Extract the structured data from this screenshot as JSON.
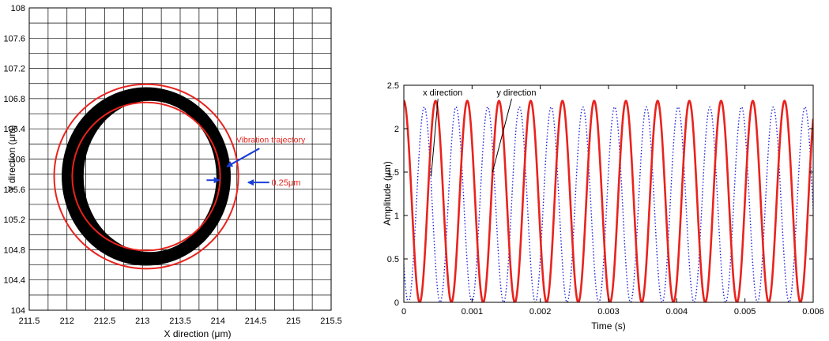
{
  "chart_data": [
    {
      "type": "scatter",
      "xlabel": "X direction (μm)",
      "ylabel": "Y direction (μm)",
      "xlim": [
        211.5,
        215.5
      ],
      "ylim": [
        104,
        108
      ],
      "xticks": [
        211.5,
        212,
        212.5,
        213,
        213.5,
        214,
        214.5,
        215,
        215.5
      ],
      "xtick_labels": [
        "211.5",
        "212",
        "212.5",
        "213",
        "213.5",
        "214",
        "214.5",
        "215",
        "215.5"
      ],
      "yticks": [
        104,
        104.4,
        104.8,
        105.2,
        105.6,
        106,
        106.4,
        106.8,
        107.2,
        107.6,
        108
      ],
      "ytick_labels": [
        "104",
        "104.4",
        "104.8",
        "105.2",
        "105.6",
        "106",
        "106.4",
        "106.8",
        "107.2",
        "107.6",
        "108"
      ],
      "grid": true,
      "band": {
        "outer": {
          "cx": 213.05,
          "cy": 105.77,
          "rx": 1.12,
          "ry": 1.18
        },
        "inner": {
          "cx": 213.1,
          "cy": 105.77,
          "rx": 0.88,
          "ry": 1.0
        },
        "color": "#000000"
      },
      "circles": [
        {
          "cx": 213.05,
          "cy": 105.77,
          "r": 1.22,
          "color": "#e8231d"
        },
        {
          "cx": 213.05,
          "cy": 105.77,
          "r": 0.98,
          "color": "#e8231d"
        }
      ],
      "annotations": [
        {
          "text": "Vibration trajectory",
          "x": 214.7,
          "y": 106.22,
          "color": "#e8231d",
          "arrow_from": [
            214.55,
            106.14
          ],
          "arrow_to": [
            214.12,
            105.9
          ]
        },
        {
          "text": "0.25μm",
          "x": 214.72,
          "y": 105.69,
          "color": "#e8231d",
          "arrow_left_from": [
            213.85,
            105.72
          ],
          "arrow_left_to": [
            214.02,
            105.72
          ],
          "arrow_right_from": [
            214.68,
            105.69
          ],
          "arrow_right_to": [
            214.4,
            105.69
          ]
        }
      ]
    },
    {
      "type": "line",
      "xlabel": "Time (s)",
      "ylabel": "Amplitude (μm)",
      "xlim": [
        0,
        0.006
      ],
      "ylim": [
        0,
        2.5
      ],
      "xticks": [
        0,
        0.001,
        0.002,
        0.003,
        0.004,
        0.005,
        0.006
      ],
      "xtick_labels": [
        "0",
        "0.001",
        "0.002",
        "0.003",
        "0.004",
        "0.005",
        "0.006"
      ],
      "yticks": [
        0,
        0.5,
        1,
        1.5,
        2,
        2.5
      ],
      "ytick_labels": [
        "0",
        "0.5",
        "1",
        "1.5",
        "2",
        "2.5"
      ],
      "grid": false,
      "series": [
        {
          "name": "x direction",
          "color": "#2222dd",
          "style": "dotted",
          "amplitude": 1.125,
          "offset": 1.125,
          "period": 0.000465,
          "phase_t0": 0.0003
        },
        {
          "name": "y direction",
          "color": "#e8231d",
          "style": "solid",
          "amplitude": 1.16,
          "offset": 1.16,
          "period": 0.000465,
          "phase_t0": 0.0
        }
      ],
      "annotations": [
        {
          "text": "x direction",
          "x": 0.00057,
          "y": 2.38,
          "arrow_to": [
            0.0004,
            1.45
          ]
        },
        {
          "text": "y direction",
          "x": 0.00165,
          "y": 2.38,
          "arrow_to": [
            0.0013,
            1.5
          ]
        }
      ]
    }
  ]
}
